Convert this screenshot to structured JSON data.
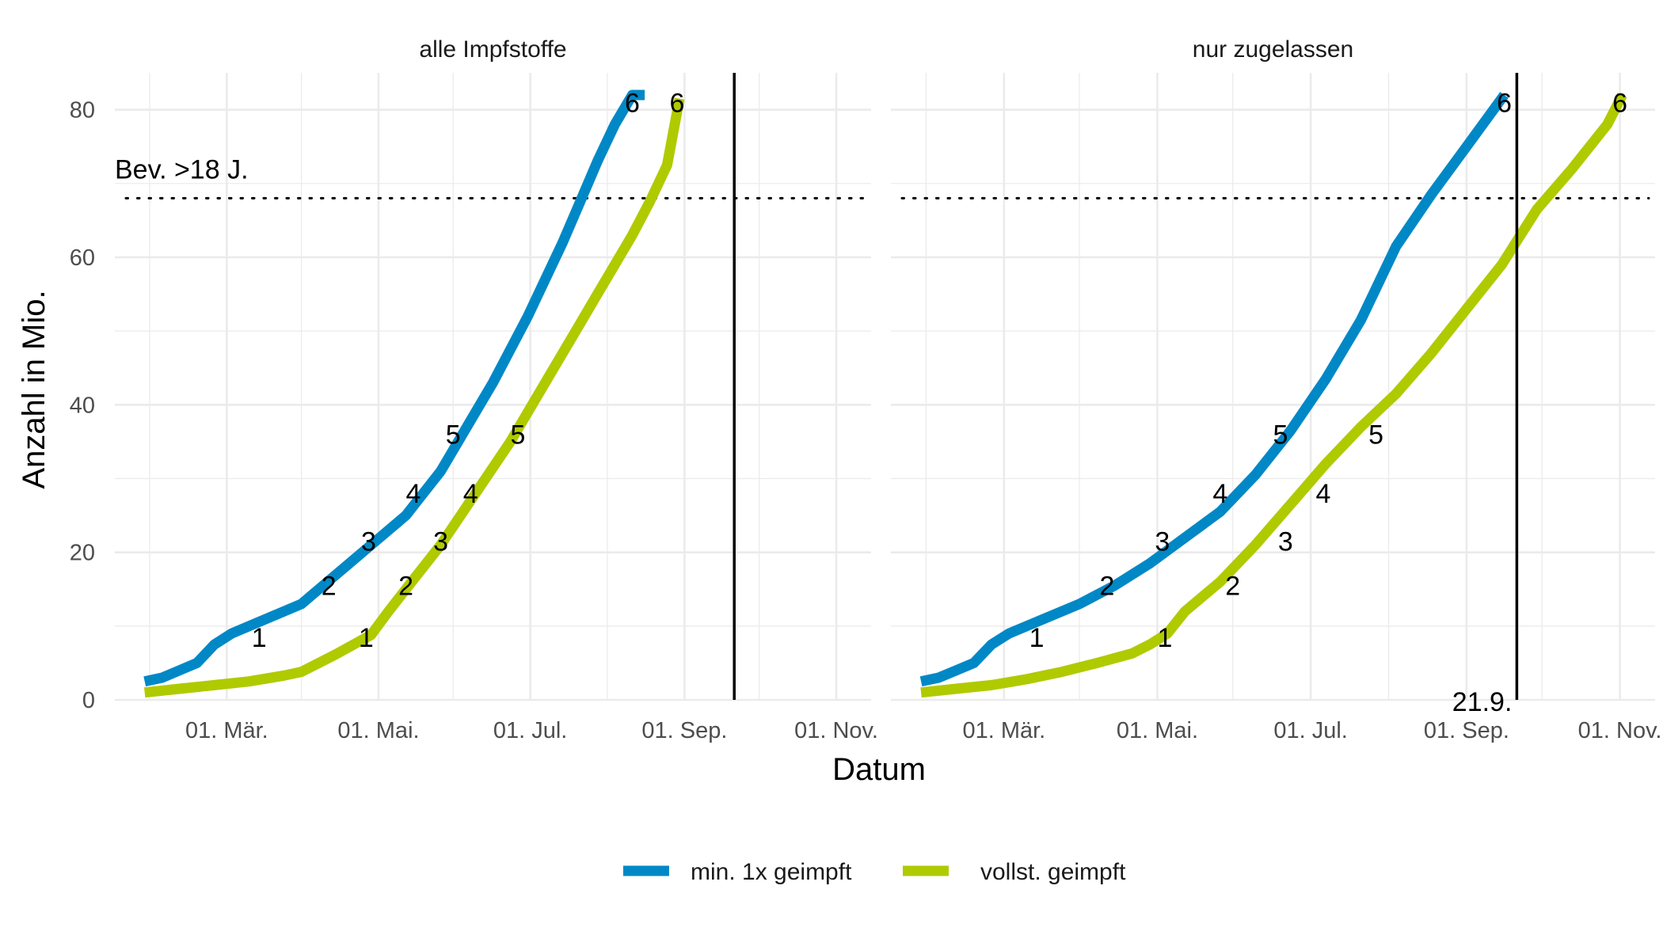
{
  "figure": {
    "x_title": "Datum",
    "y_title": "Anzahl in Mio.",
    "legend_position": "bottom"
  },
  "colors": {
    "series_1": "#0088c6",
    "series_2": "#b0ca00",
    "grid": "#ebebeb",
    "reference_lines": "#000000"
  },
  "chart_data": [
    {
      "type": "line",
      "facet": "alle Impfstoffe",
      "ylim": [
        0,
        85
      ],
      "xlim": [
        "2021-01-15",
        "2021-11-15"
      ],
      "x_ticks": [
        "2021-03-01",
        "2021-05-01",
        "2021-07-01",
        "2021-09-01",
        "2021-11-01"
      ],
      "x_tick_labels": [
        "01. Mär.",
        "01. Mai.",
        "01. Jul.",
        "01. Sep.",
        "01. Nov."
      ],
      "y_ticks": [
        0,
        20,
        40,
        60,
        80
      ],
      "grid": true,
      "hline": {
        "y": 68,
        "label": "Bev. >18 J."
      },
      "vline": {
        "x": "2021-09-21",
        "label": ""
      },
      "series": [
        {
          "name": "min. 1x geimpft",
          "x": [
            "2021-01-27",
            "2021-02-03",
            "2021-02-10",
            "2021-02-17",
            "2021-02-24",
            "2021-03-03",
            "2021-03-17",
            "2021-03-31",
            "2021-04-07",
            "2021-04-14",
            "2021-04-21",
            "2021-04-28",
            "2021-05-12",
            "2021-05-19",
            "2021-05-26",
            "2021-06-02",
            "2021-06-09",
            "2021-06-16",
            "2021-06-23",
            "2021-06-30",
            "2021-07-07",
            "2021-07-14",
            "2021-07-21",
            "2021-07-28",
            "2021-08-04",
            "2021-08-11",
            "2021-08-16"
          ],
          "y": [
            2.5,
            3,
            4,
            5,
            7.5,
            9,
            11,
            13,
            15,
            17,
            19,
            21,
            25,
            28,
            31,
            35,
            39,
            43,
            47.5,
            52,
            57,
            62,
            67.5,
            73,
            78,
            82,
            82
          ],
          "labels": [
            {
              "x": "2021-03-14",
              "y": 8.5,
              "text": "1"
            },
            {
              "x": "2021-04-11",
              "y": 15.5,
              "text": "2"
            },
            {
              "x": "2021-04-27",
              "y": 21.5,
              "text": "3"
            },
            {
              "x": "2021-05-15",
              "y": 28,
              "text": "4"
            },
            {
              "x": "2021-05-31",
              "y": 36,
              "text": "5"
            },
            {
              "x": "2021-08-11",
              "y": 81,
              "text": "6"
            }
          ]
        },
        {
          "name": "vollst. geimpft",
          "x": [
            "2021-01-27",
            "2021-02-10",
            "2021-02-24",
            "2021-03-10",
            "2021-03-24",
            "2021-03-31",
            "2021-04-07",
            "2021-04-14",
            "2021-04-21",
            "2021-04-28",
            "2021-05-05",
            "2021-05-12",
            "2021-05-19",
            "2021-05-26",
            "2021-06-02",
            "2021-06-09",
            "2021-06-16",
            "2021-06-23",
            "2021-06-30",
            "2021-07-07",
            "2021-07-14",
            "2021-07-21",
            "2021-07-28",
            "2021-08-04",
            "2021-08-11",
            "2021-08-18",
            "2021-08-25",
            "2021-08-30"
          ],
          "y": [
            1,
            1.5,
            2,
            2.5,
            3.3,
            3.8,
            5,
            6.2,
            7.5,
            8.8,
            12,
            15,
            18,
            21,
            24.5,
            28,
            31.5,
            35,
            39,
            43,
            47,
            51,
            55,
            59,
            63,
            67.5,
            72.5,
            81.5
          ],
          "labels": [
            {
              "x": "2021-04-26",
              "y": 8.5,
              "text": "1"
            },
            {
              "x": "2021-05-12",
              "y": 15.5,
              "text": "2"
            },
            {
              "x": "2021-05-26",
              "y": 21.5,
              "text": "3"
            },
            {
              "x": "2021-06-07",
              "y": 28,
              "text": "4"
            },
            {
              "x": "2021-06-26",
              "y": 36,
              "text": "5"
            },
            {
              "x": "2021-08-29",
              "y": 81,
              "text": "6"
            }
          ]
        }
      ]
    },
    {
      "type": "line",
      "facet": "nur zugelassen",
      "ylim": [
        0,
        85
      ],
      "xlim": [
        "2021-01-15",
        "2021-11-15"
      ],
      "x_ticks": [
        "2021-03-01",
        "2021-05-01",
        "2021-07-01",
        "2021-09-01",
        "2021-11-01"
      ],
      "x_tick_labels": [
        "01. Mär.",
        "01. Mai.",
        "01. Jul.",
        "01. Sep.",
        "01. Nov."
      ],
      "y_ticks": [
        0,
        20,
        40,
        60,
        80
      ],
      "grid": true,
      "hline": {
        "y": 68,
        "label": ""
      },
      "vline": {
        "x": "2021-09-21",
        "label": "21.9."
      },
      "series": [
        {
          "name": "min. 1x geimpft",
          "x": [
            "2021-01-27",
            "2021-02-03",
            "2021-02-10",
            "2021-02-17",
            "2021-02-24",
            "2021-03-03",
            "2021-03-17",
            "2021-03-31",
            "2021-04-14",
            "2021-04-28",
            "2021-05-12",
            "2021-05-26",
            "2021-06-09",
            "2021-06-23",
            "2021-07-07",
            "2021-07-21",
            "2021-08-04",
            "2021-08-18",
            "2021-09-01",
            "2021-09-16"
          ],
          "y": [
            2.5,
            3,
            4,
            5,
            7.5,
            9,
            11,
            13,
            15.5,
            18.5,
            22,
            25.5,
            30.5,
            36.5,
            43.5,
            51.5,
            61.5,
            68.5,
            75,
            82
          ],
          "labels": [
            {
              "x": "2021-03-14",
              "y": 8.5,
              "text": "1"
            },
            {
              "x": "2021-04-11",
              "y": 15.5,
              "text": "2"
            },
            {
              "x": "2021-05-03",
              "y": 21.5,
              "text": "3"
            },
            {
              "x": "2021-05-26",
              "y": 28,
              "text": "4"
            },
            {
              "x": "2021-06-19",
              "y": 36,
              "text": "5"
            },
            {
              "x": "2021-09-16",
              "y": 81,
              "text": "6"
            }
          ]
        },
        {
          "name": "vollst. geimpft",
          "x": [
            "2021-01-27",
            "2021-02-10",
            "2021-02-24",
            "2021-03-10",
            "2021-03-24",
            "2021-04-07",
            "2021-04-21",
            "2021-04-28",
            "2021-05-05",
            "2021-05-12",
            "2021-05-26",
            "2021-06-09",
            "2021-06-23",
            "2021-07-07",
            "2021-07-21",
            "2021-08-04",
            "2021-08-18",
            "2021-09-01",
            "2021-09-15",
            "2021-09-29",
            "2021-10-13",
            "2021-10-27",
            "2021-11-02"
          ],
          "y": [
            1,
            1.5,
            2,
            2.8,
            3.8,
            5,
            6.3,
            7.5,
            9,
            12,
            16,
            21,
            26.5,
            32,
            37,
            41.5,
            47,
            53,
            59,
            66.5,
            72,
            78,
            82
          ],
          "labels": [
            {
              "x": "2021-05-04",
              "y": 8.5,
              "text": "1"
            },
            {
              "x": "2021-05-31",
              "y": 15.5,
              "text": "2"
            },
            {
              "x": "2021-06-21",
              "y": 21.5,
              "text": "3"
            },
            {
              "x": "2021-07-06",
              "y": 28,
              "text": "4"
            },
            {
              "x": "2021-07-27",
              "y": 36,
              "text": "5"
            },
            {
              "x": "2021-11-01",
              "y": 81,
              "text": "6"
            }
          ]
        }
      ]
    }
  ]
}
